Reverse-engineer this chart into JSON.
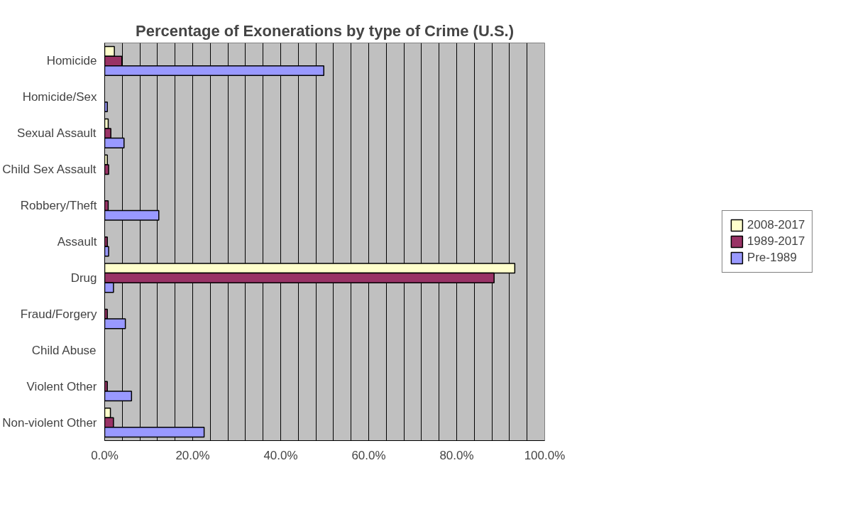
{
  "chart_data": {
    "type": "bar",
    "orientation": "horizontal",
    "title": "Percentage of Exonerations by type of Crime (U.S.)",
    "categories": [
      "Homicide",
      "Homicide/Sex",
      "Sexual Assault",
      "Child Sex Assault",
      "Robbery/Theft",
      "Assault",
      "Drug",
      "Fraud/Forgery",
      "Child Abuse",
      "Violent Other",
      "Non-violent Other"
    ],
    "series": [
      {
        "name": "2008-2017",
        "color": "#ffffcc",
        "values": [
          2.2,
          null,
          0.8,
          0.6,
          null,
          null,
          93.2,
          null,
          null,
          null,
          1.3
        ]
      },
      {
        "name": "1989-2017",
        "color": "#993366",
        "values": [
          3.9,
          null,
          1.4,
          0.9,
          0.8,
          0.6,
          88.5,
          0.6,
          null,
          0.6,
          2.0
        ]
      },
      {
        "name": "Pre-1989",
        "color": "#9999ff",
        "values": [
          49.8,
          0.6,
          4.4,
          null,
          12.3,
          0.9,
          2.0,
          4.7,
          null,
          6.1,
          22.6
        ]
      }
    ],
    "xlim": [
      0,
      100
    ],
    "xticks": [
      {
        "value": 0,
        "label": "0.0%"
      },
      {
        "value": 4,
        "label": null
      },
      {
        "value": 8,
        "label": null
      },
      {
        "value": 12,
        "label": null
      },
      {
        "value": 16,
        "label": null
      },
      {
        "value": 20,
        "label": "20.0%"
      },
      {
        "value": 24,
        "label": null
      },
      {
        "value": 28,
        "label": null
      },
      {
        "value": 32,
        "label": null
      },
      {
        "value": 36,
        "label": null
      },
      {
        "value": 40,
        "label": "40.0%"
      },
      {
        "value": 44,
        "label": null
      },
      {
        "value": 48,
        "label": null
      },
      {
        "value": 52,
        "label": null
      },
      {
        "value": 56,
        "label": null
      },
      {
        "value": 60,
        "label": "60.0%"
      },
      {
        "value": 64,
        "label": null
      },
      {
        "value": 68,
        "label": null
      },
      {
        "value": 72,
        "label": null
      },
      {
        "value": 76,
        "label": null
      },
      {
        "value": 80,
        "label": "80.0%"
      },
      {
        "value": 84,
        "label": null
      },
      {
        "value": 88,
        "label": null
      },
      {
        "value": 92,
        "label": null
      },
      {
        "value": 96,
        "label": null
      },
      {
        "value": 100,
        "label": "100.0%"
      }
    ],
    "grid": "x",
    "legend": "right"
  }
}
